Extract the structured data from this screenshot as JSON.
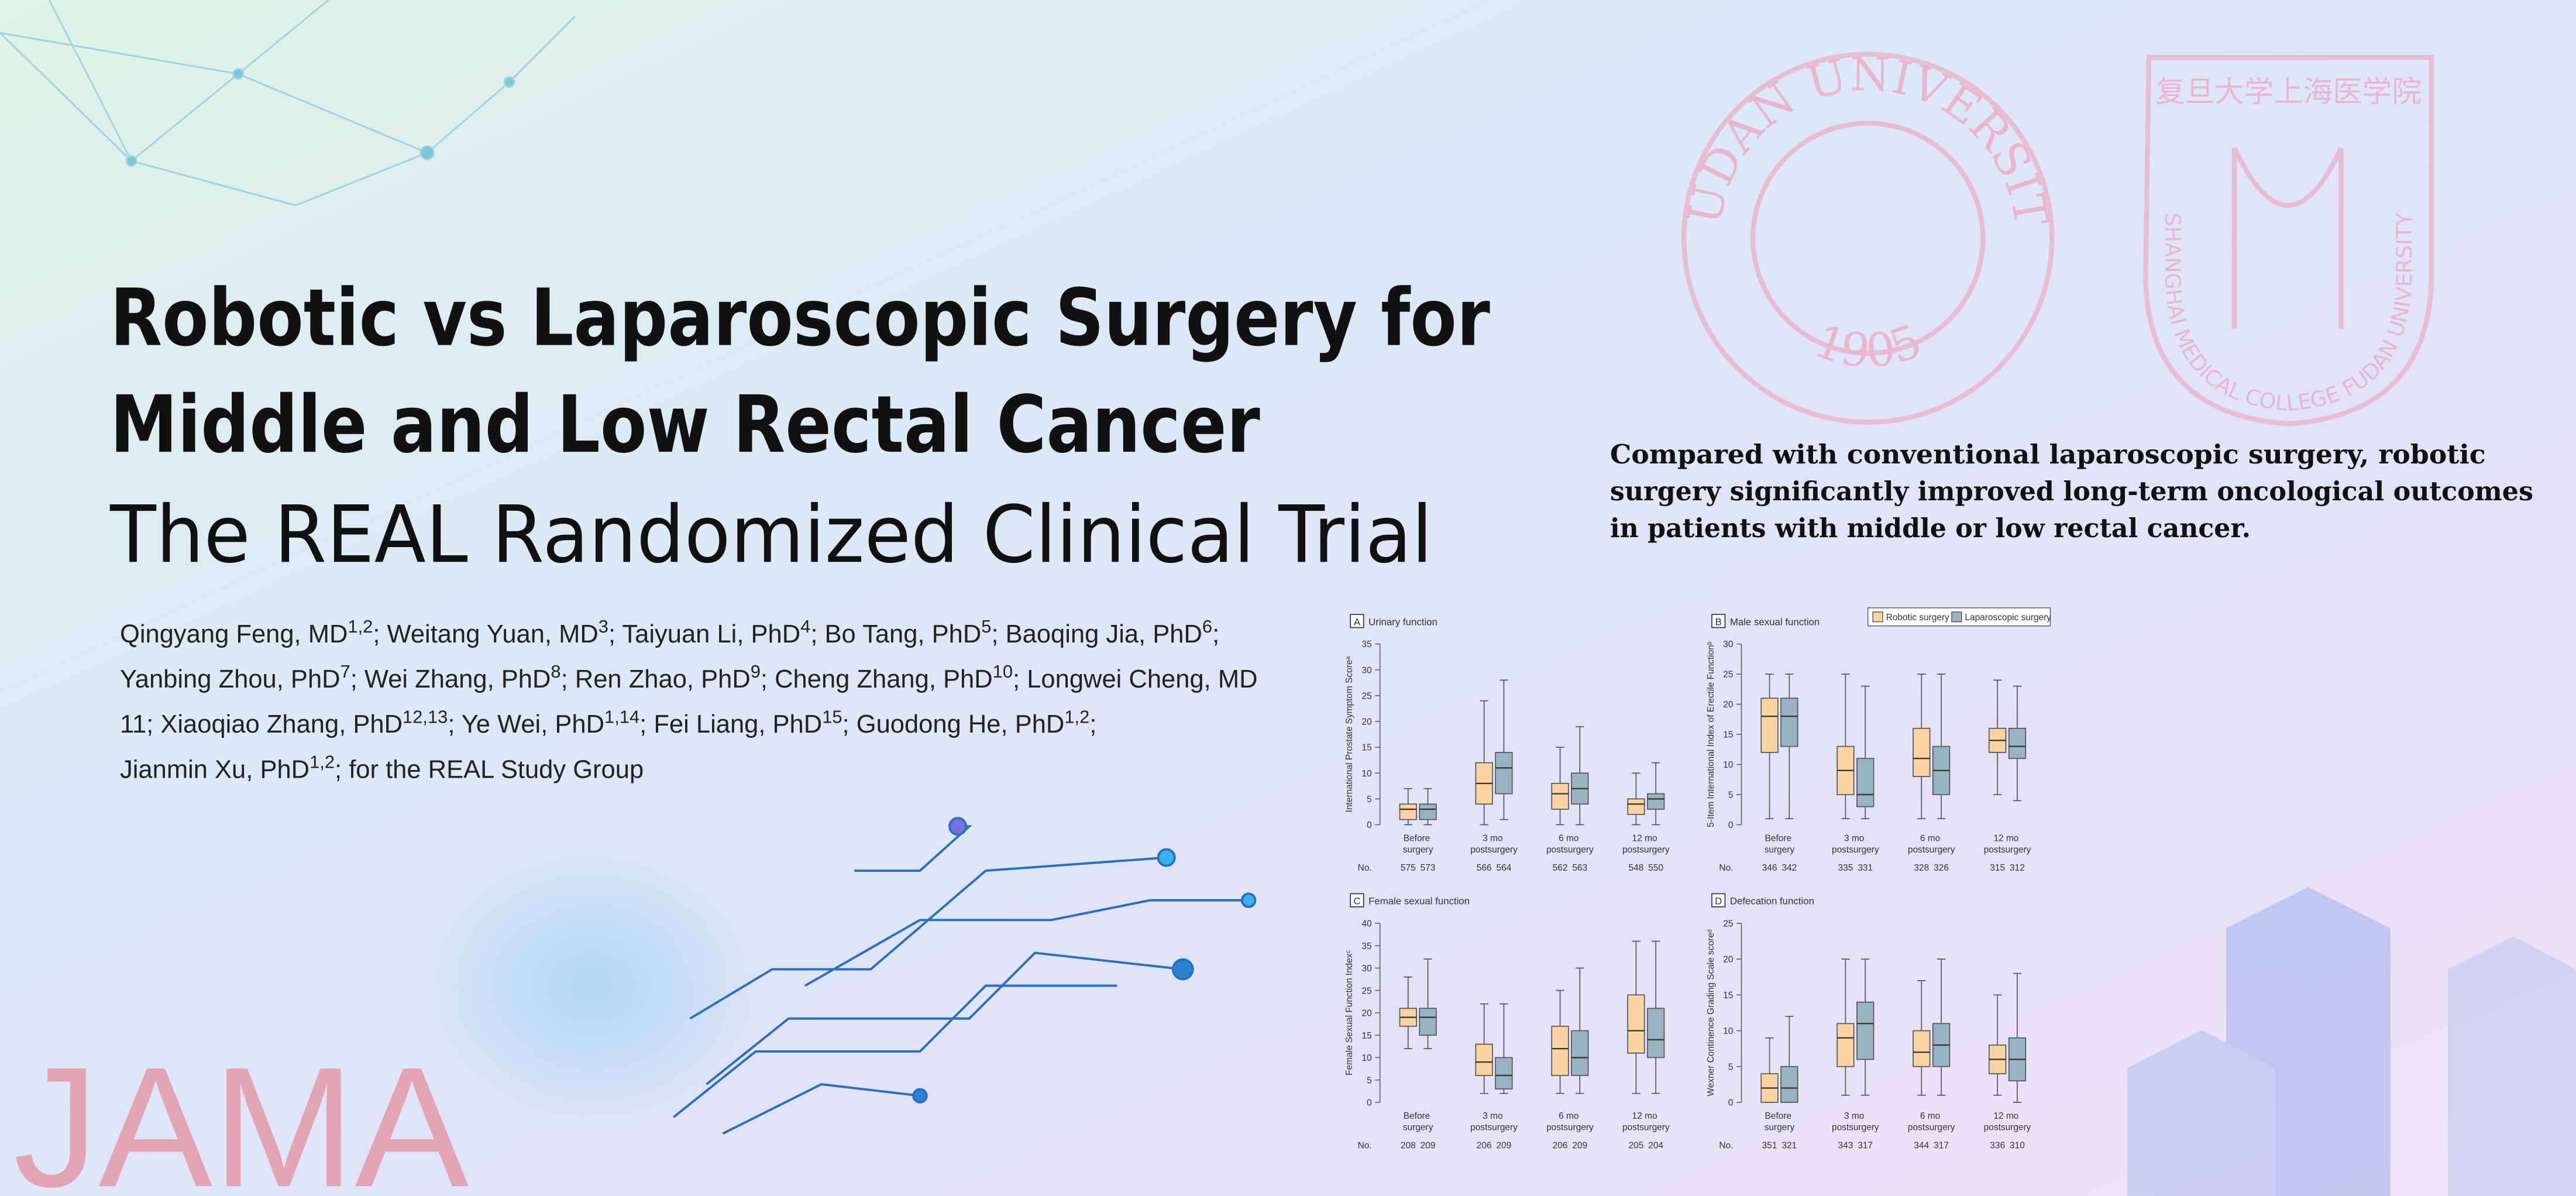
{
  "header": {
    "title_lines": [
      "Robotic vs Laparoscopic Surgery for",
      "Middle and Low Rectal Cancer"
    ],
    "subtitle": "The REAL Randomized Clinical Trial"
  },
  "authors": [
    [
      {
        "text": "Qingyang Feng, MD"
      },
      {
        "superscript": "1,2"
      },
      {
        "text": "; Weitang Yuan, MD"
      },
      {
        "superscript": "3"
      },
      {
        "text": "; Taiyuan Li, PhD"
      },
      {
        "superscript": "4"
      },
      {
        "text": "; Bo Tang, PhD"
      },
      {
        "superscript": "5"
      },
      {
        "text": "; Baoqing Jia, PhD"
      },
      {
        "superscript": "6"
      },
      {
        "text": ";"
      }
    ],
    [
      {
        "text": "Yanbing Zhou, PhD"
      },
      {
        "superscript": "7"
      },
      {
        "text": "; Wei Zhang, PhD"
      },
      {
        "superscript": "8"
      },
      {
        "text": "; Ren Zhao, PhD"
      },
      {
        "superscript": "9"
      },
      {
        "text": "; Cheng Zhang, PhD"
      },
      {
        "superscript": "10"
      },
      {
        "text": "; Longwei Cheng, MD"
      }
    ],
    [
      {
        "text": "11"
      },
      {
        "text": "; Xiaoqiao Zhang, PhD"
      },
      {
        "superscript": "12,13"
      },
      {
        "text": "; Ye Wei, PhD"
      },
      {
        "superscript": "1,14"
      },
      {
        "text": "; Fei Liang, PhD"
      },
      {
        "superscript": "15"
      },
      {
        "text": "; Guodong He, PhD"
      },
      {
        "superscript": "1,2"
      },
      {
        "text": ";"
      }
    ],
    [
      {
        "text": "Jianmin Xu, PhD"
      },
      {
        "superscript": "1,2"
      },
      {
        "text": "; for the REAL Study Group"
      }
    ]
  ],
  "summary": [
    "Compared with conventional laparoscopic surgery, robotic",
    "surgery significantly improved long-term oncological outcomes",
    "in patients with middle or low rectal cancer."
  ],
  "logos": {
    "fudan_ring": "FUDAN UNIVERSITY",
    "fudan_year": "1905",
    "college_cn": "复旦大学上海医学院",
    "college_en": "SHANGHAI MEDICAL COLLEGE FUDAN UNIVERSITY"
  },
  "brand": "JAMA",
  "count_label": "No.",
  "chart_data": [
    {
      "type": "box",
      "panel": "A",
      "title": "Urinary function",
      "ylabel": "International Prostate Symptom Scoreᵃ",
      "categories": [
        "Before surgery",
        "3 mo postsurgery",
        "6 mo postsurgery",
        "12 mo postsurgery"
      ],
      "ylim": [
        0,
        35
      ],
      "yticks": [
        0,
        5,
        10,
        15,
        20,
        25,
        30,
        35
      ],
      "series": [
        {
          "name": "Robotic surgery",
          "color": "#fbd3a0",
          "n": [
            575,
            566,
            562,
            548
          ],
          "values": [
            {
              "low": 0,
              "q1": 1,
              "median": 3,
              "q3": 4,
              "high": 7
            },
            {
              "low": 0,
              "q1": 4,
              "median": 8,
              "q3": 12,
              "high": 24
            },
            {
              "low": 0,
              "q1": 3,
              "median": 6,
              "q3": 8,
              "high": 15
            },
            {
              "low": 0,
              "q1": 2,
              "median": 4,
              "q3": 5,
              "high": 10
            }
          ]
        },
        {
          "name": "Laparoscopic surgery",
          "color": "#9ab3c2",
          "n": [
            573,
            564,
            563,
            550
          ],
          "values": [
            {
              "low": 0,
              "q1": 1,
              "median": 3,
              "q3": 4,
              "high": 7
            },
            {
              "low": 1,
              "q1": 6,
              "median": 11,
              "q3": 14,
              "high": 28
            },
            {
              "low": 0,
              "q1": 4,
              "median": 7,
              "q3": 10,
              "high": 19
            },
            {
              "low": 0,
              "q1": 3,
              "median": 5,
              "q3": 6,
              "high": 12
            }
          ]
        }
      ]
    },
    {
      "type": "box",
      "panel": "B",
      "title": "Male sexual function",
      "ylabel": "5-Item International Index of Erectile Functionᵇ",
      "categories": [
        "Before surgery",
        "3 mo postsurgery",
        "6 mo postsurgery",
        "12 mo postsurgery"
      ],
      "ylim": [
        0,
        30
      ],
      "yticks": [
        0,
        5,
        10,
        15,
        20,
        25,
        30
      ],
      "series": [
        {
          "name": "Robotic surgery",
          "color": "#fbd3a0",
          "n": [
            346,
            335,
            328,
            315
          ],
          "values": [
            {
              "low": 1,
              "q1": 12,
              "median": 18,
              "q3": 21,
              "high": 25
            },
            {
              "low": 1,
              "q1": 5,
              "median": 9,
              "q3": 13,
              "high": 25
            },
            {
              "low": 1,
              "q1": 8,
              "median": 11,
              "q3": 16,
              "high": 25
            },
            {
              "low": 5,
              "q1": 12,
              "median": 14,
              "q3": 16,
              "high": 24
            }
          ]
        },
        {
          "name": "Laparoscopic surgery",
          "color": "#9ab3c2",
          "n": [
            342,
            331,
            326,
            312
          ],
          "values": [
            {
              "low": 1,
              "q1": 13,
              "median": 18,
              "q3": 21,
              "high": 25
            },
            {
              "low": 1,
              "q1": 3,
              "median": 5,
              "q3": 11,
              "high": 23
            },
            {
              "low": 1,
              "q1": 5,
              "median": 9,
              "q3": 13,
              "high": 25
            },
            {
              "low": 4,
              "q1": 11,
              "median": 13,
              "q3": 16,
              "high": 23
            }
          ]
        }
      ]
    },
    {
      "type": "box",
      "panel": "C",
      "title": "Female sexual function",
      "ylabel": "Female Sexual Function Indexᶜ",
      "categories": [
        "Before surgery",
        "3 mo postsurgery",
        "6 mo postsurgery",
        "12 mo postsurgery"
      ],
      "ylim": [
        0,
        40
      ],
      "yticks": [
        0,
        5,
        10,
        15,
        20,
        25,
        30,
        35,
        40
      ],
      "series": [
        {
          "name": "Robotic surgery",
          "color": "#fbd3a0",
          "n": [
            208,
            206,
            206,
            205
          ],
          "values": [
            {
              "low": 12,
              "q1": 17,
              "median": 19,
              "q3": 21,
              "high": 28
            },
            {
              "low": 2,
              "q1": 6,
              "median": 9,
              "q3": 13,
              "high": 22
            },
            {
              "low": 2,
              "q1": 6,
              "median": 12,
              "q3": 17,
              "high": 25
            },
            {
              "low": 2,
              "q1": 11,
              "median": 16,
              "q3": 24,
              "high": 36
            }
          ]
        },
        {
          "name": "Laparoscopic surgery",
          "color": "#9ab3c2",
          "n": [
            209,
            209,
            209,
            204
          ],
          "values": [
            {
              "low": 12,
              "q1": 15,
              "median": 19,
              "q3": 21,
              "high": 32
            },
            {
              "low": 2,
              "q1": 3,
              "median": 6,
              "q3": 10,
              "high": 22
            },
            {
              "low": 2,
              "q1": 6,
              "median": 10,
              "q3": 16,
              "high": 30
            },
            {
              "low": 2,
              "q1": 10,
              "median": 14,
              "q3": 21,
              "high": 36
            }
          ]
        }
      ]
    },
    {
      "type": "box",
      "panel": "D",
      "title": "Defecation function",
      "ylabel": "Wexner Continence Grading Scale scoreᵈ",
      "categories": [
        "Before surgery",
        "3 mo postsurgery",
        "6 mo postsurgery",
        "12 mo postsurgery"
      ],
      "ylim": [
        0,
        25
      ],
      "yticks": [
        0,
        5,
        10,
        15,
        20,
        25
      ],
      "series": [
        {
          "name": "Robotic surgery",
          "color": "#fbd3a0",
          "n": [
            351,
            343,
            344,
            336
          ],
          "values": [
            {
              "low": 0,
              "q1": 0,
              "median": 2,
              "q3": 4,
              "high": 9
            },
            {
              "low": 1,
              "q1": 5,
              "median": 9,
              "q3": 11,
              "high": 20
            },
            {
              "low": 1,
              "q1": 5,
              "median": 7,
              "q3": 10,
              "high": 17
            },
            {
              "low": 1,
              "q1": 4,
              "median": 6,
              "q3": 8,
              "high": 15
            }
          ]
        },
        {
          "name": "Laparoscopic surgery",
          "color": "#9ab3c2",
          "n": [
            321,
            317,
            317,
            310
          ],
          "values": [
            {
              "low": 0,
              "q1": 0,
              "median": 2,
              "q3": 5,
              "high": 12
            },
            {
              "low": 1,
              "q1": 6,
              "median": 11,
              "q3": 14,
              "high": 20
            },
            {
              "low": 1,
              "q1": 5,
              "median": 8,
              "q3": 11,
              "high": 20
            },
            {
              "low": 0,
              "q1": 3,
              "median": 6,
              "q3": 9,
              "high": 18
            }
          ]
        }
      ]
    }
  ]
}
